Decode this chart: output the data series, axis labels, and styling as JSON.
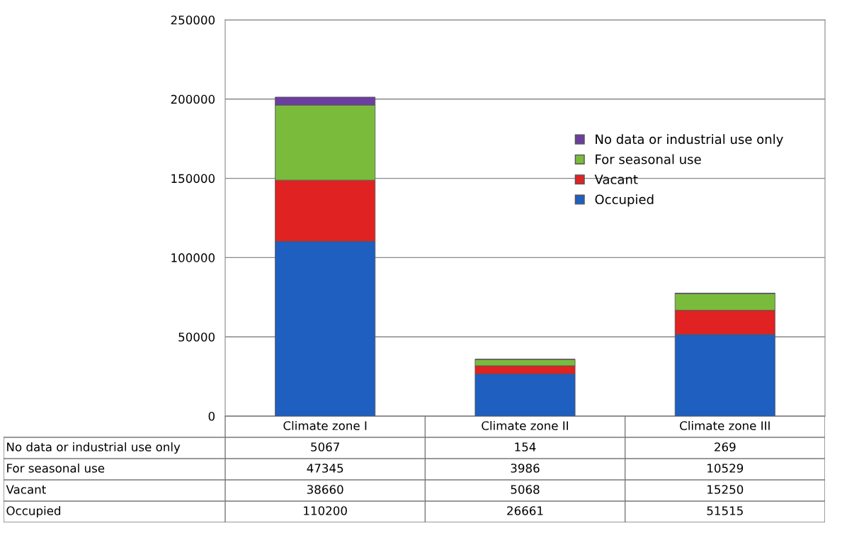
{
  "chart_data": {
    "type": "bar",
    "stacked": true,
    "categories": [
      "Climate zone I",
      "Climate zone II",
      "Climate zone III"
    ],
    "series": [
      {
        "name": "Occupied",
        "color": "#1f5fc0",
        "values": [
          110200,
          26661,
          51515
        ]
      },
      {
        "name": "Vacant",
        "color": "#e02222",
        "values": [
          38660,
          5068,
          15250
        ]
      },
      {
        "name": "For seasonal use",
        "color": "#7bbb3c",
        "values": [
          47345,
          3986,
          10529
        ]
      },
      {
        "name": "No data or industrial use only",
        "color": "#6b3fa0",
        "values": [
          5067,
          154,
          269
        ]
      }
    ],
    "ylim": [
      0,
      250000
    ],
    "yticks": [
      0,
      50000,
      100000,
      150000,
      200000,
      250000
    ],
    "grid": "y",
    "legend": "right",
    "data_labels": true
  }
}
